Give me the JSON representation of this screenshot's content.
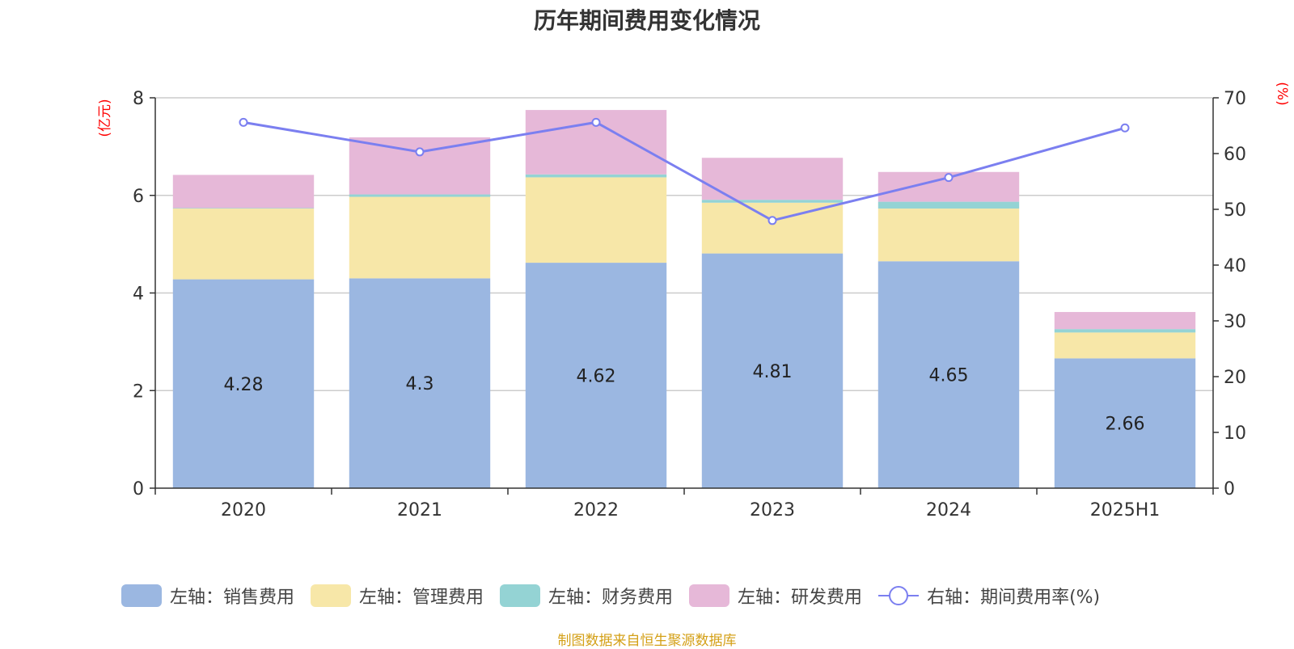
{
  "chart_data": {
    "type": "bar",
    "title": "历年期间费用变化情况",
    "categories": [
      "2020",
      "2021",
      "2022",
      "2023",
      "2024",
      "2025H1"
    ],
    "series": [
      {
        "name": "左轴：销售费用",
        "axis": "left",
        "color": "#9bb7e1",
        "values": [
          4.28,
          4.3,
          4.62,
          4.81,
          4.65,
          2.66
        ],
        "show_labels": true
      },
      {
        "name": "左轴：管理费用",
        "axis": "left",
        "color": "#f7e7a8",
        "values": [
          1.45,
          1.67,
          1.75,
          1.04,
          1.08,
          0.53
        ],
        "show_labels": false
      },
      {
        "name": "左轴：财务费用",
        "axis": "left",
        "color": "#94d3d4",
        "values": [
          0.01,
          0.05,
          0.06,
          0.06,
          0.14,
          0.07
        ],
        "show_labels": false
      },
      {
        "name": "左轴：研发费用",
        "axis": "left",
        "color": "#e6b8d8",
        "values": [
          0.68,
          1.17,
          1.32,
          0.86,
          0.61,
          0.35
        ],
        "show_labels": false
      },
      {
        "name": "右轴：期间费用率(%)",
        "axis": "right",
        "type": "line",
        "color": "#7b7ff0",
        "values": [
          65.6,
          60.3,
          65.6,
          48.0,
          55.7,
          64.6
        ]
      }
    ],
    "left_axis": {
      "label": "(亿元)",
      "ylim": [
        0,
        8
      ],
      "ticks": [
        0,
        2,
        4,
        6,
        8
      ]
    },
    "right_axis": {
      "label": "(%)",
      "ylim": [
        0,
        70
      ],
      "ticks": [
        0,
        10,
        20,
        30,
        40,
        50,
        60,
        70
      ]
    },
    "grid": true,
    "legend_position": "bottom"
  },
  "source": "制图数据来自恒生聚源数据库"
}
